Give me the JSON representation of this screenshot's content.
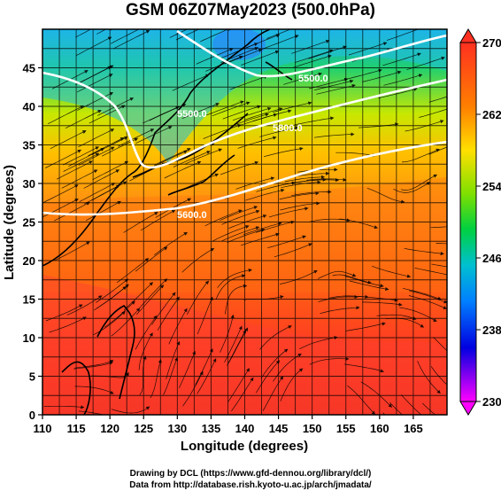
{
  "title": "GSM 06Z07May2023 (500.0hPa)",
  "axes": {
    "xlabel": "Longitude (degrees)",
    "ylabel": "Latitude (degrees)",
    "xticks": [
      110,
      115,
      120,
      125,
      130,
      135,
      140,
      145,
      150,
      155,
      160,
      165
    ],
    "yticks": [
      0,
      5,
      10,
      15,
      20,
      25,
      30,
      35,
      40,
      45
    ],
    "xlim": [
      110,
      170
    ],
    "ylim": [
      0,
      50
    ]
  },
  "colorbar": {
    "labels": [
      "270",
      "262",
      "254",
      "246",
      "238",
      "230"
    ],
    "range": [
      230,
      270
    ],
    "colors": [
      "#ff00ff",
      "#0000ff",
      "#00a0ff",
      "#00e000",
      "#ffff00",
      "#ff8000",
      "#ff3020"
    ]
  },
  "contours": [
    {
      "label": "5500.0"
    },
    {
      "label": "5500.0"
    },
    {
      "label": "5800.0"
    },
    {
      "label": "5600.0"
    }
  ],
  "credits": {
    "line1": "Drawing by DCL (https://www.gfd-dennou.org/library/dcl/)",
    "line2": "Data from http://database.rish.kyoto-u.ac.jp/arch/jmadata/"
  },
  "chart_data": {
    "type": "heatmap",
    "title": "GSM 06Z07May2023 (500.0hPa)",
    "xlabel": "Longitude (degrees)",
    "ylabel": "Latitude (degrees)",
    "xlim": [
      110,
      170
    ],
    "ylim": [
      0,
      50
    ],
    "colorbar_range": [
      230,
      270
    ],
    "grid": true
  }
}
